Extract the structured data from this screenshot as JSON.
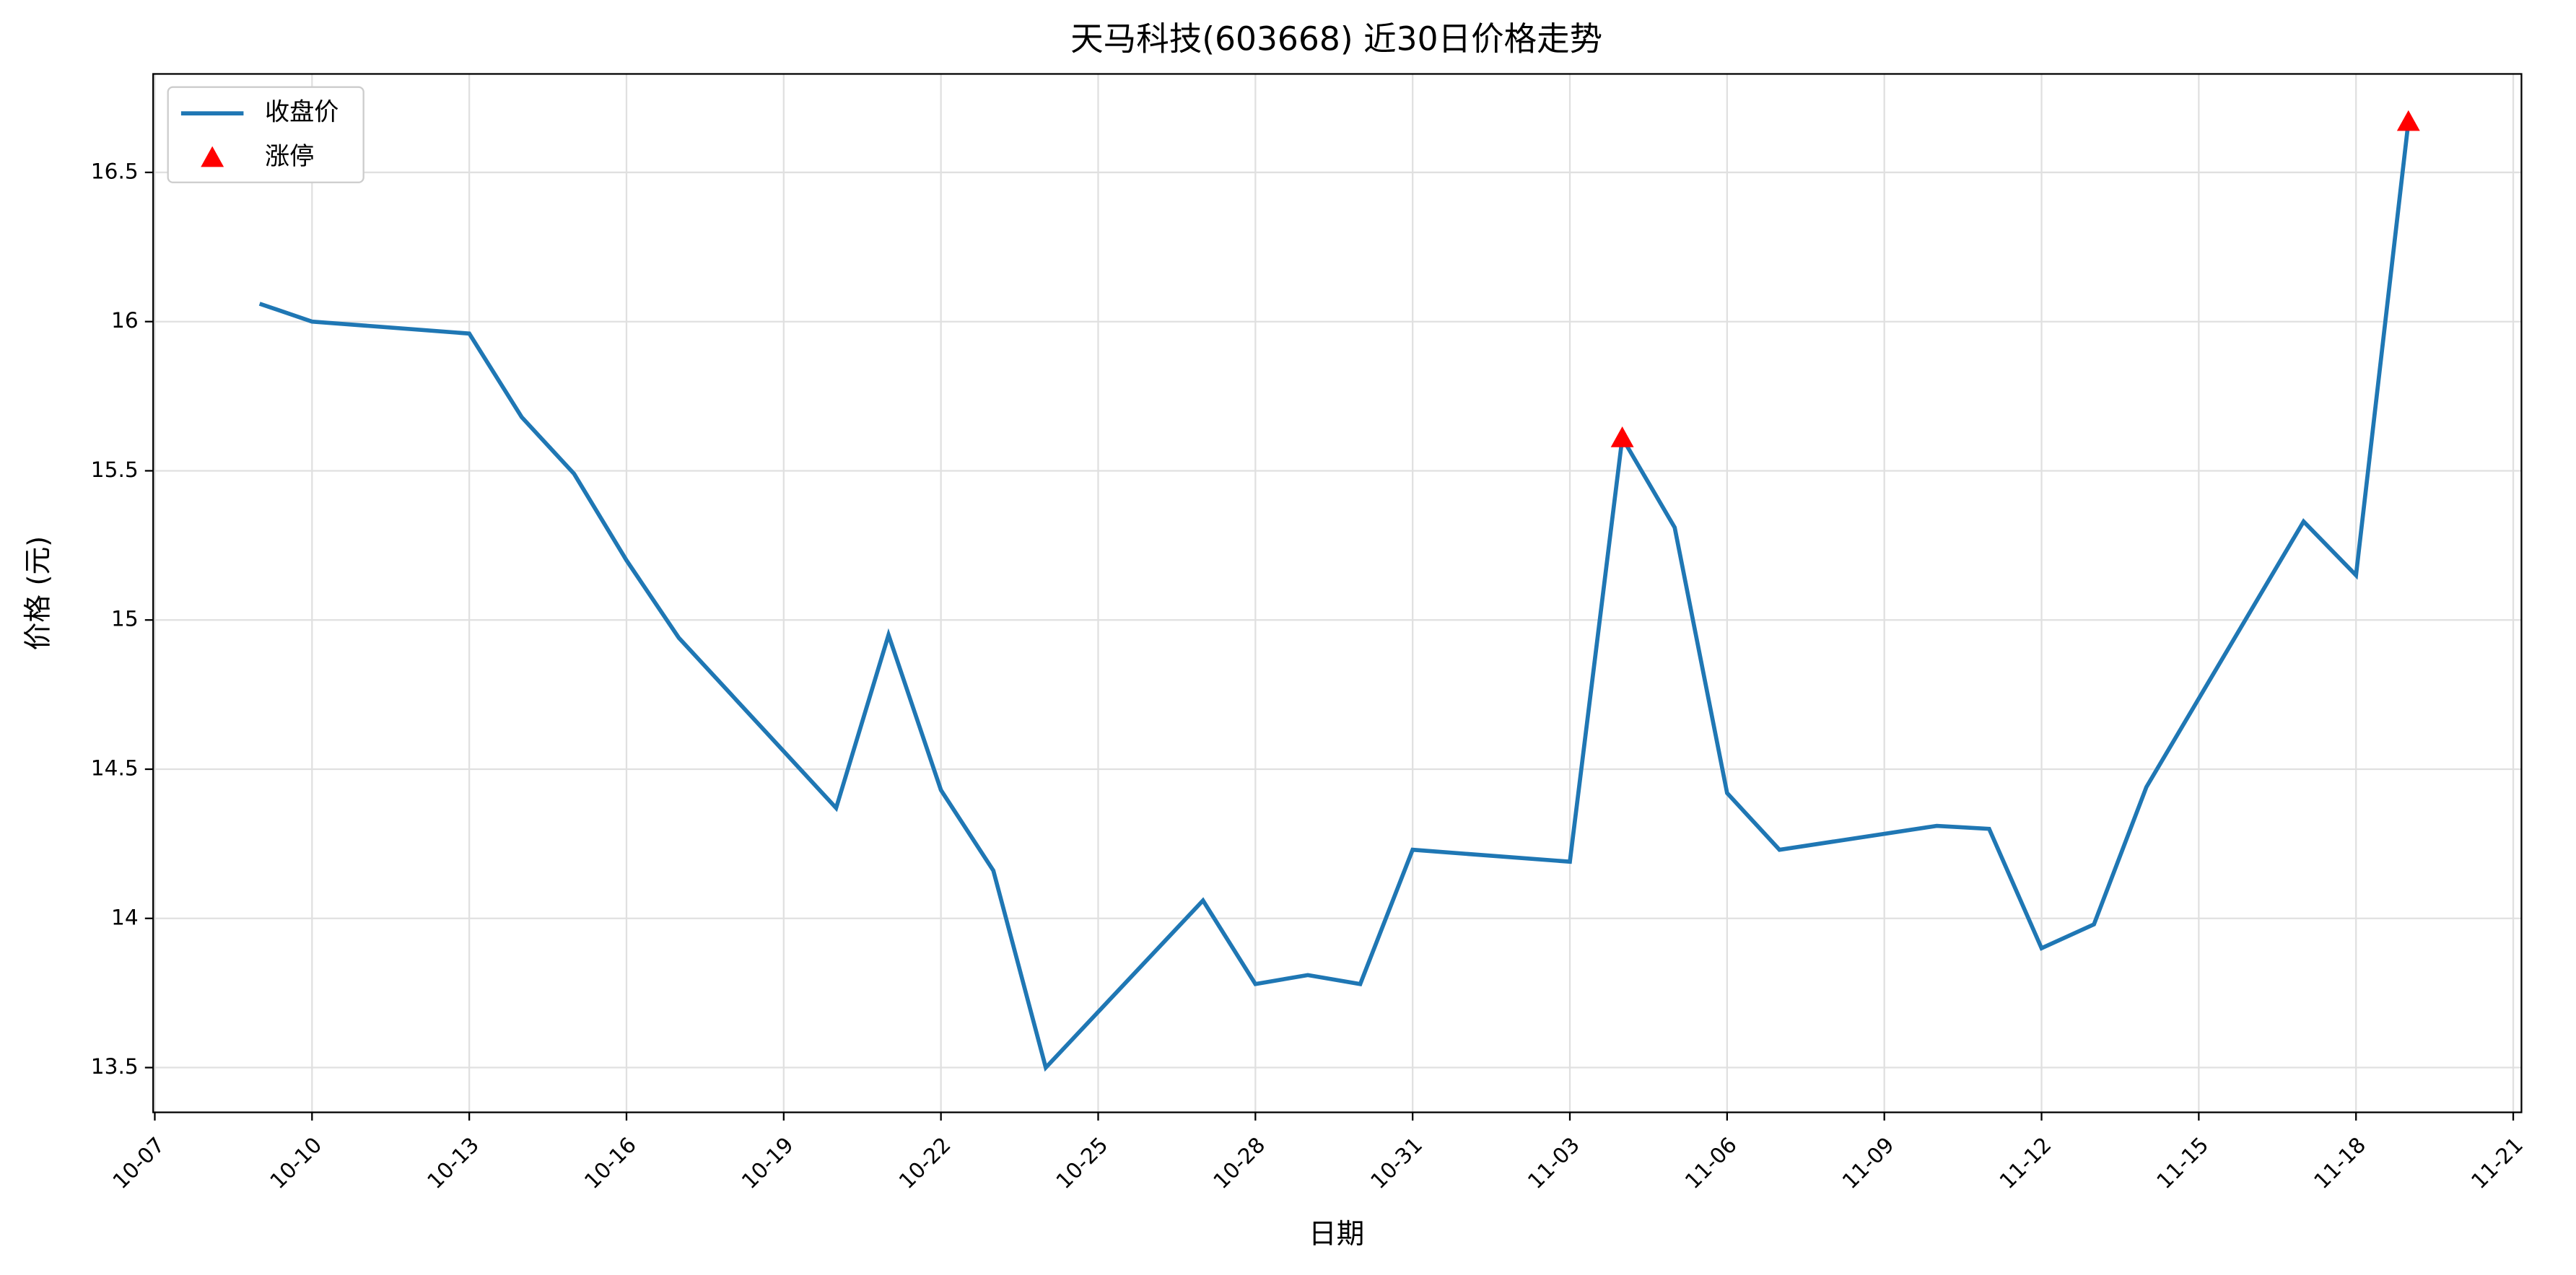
{
  "chart_data": {
    "type": "line",
    "title": "天马科技(603668) 近30日价格走势",
    "x_label": "日期",
    "y_label": "价格 (元)",
    "series": [
      {
        "name": "收盘价",
        "kind": "line",
        "color": "#1f77b4",
        "x": [
          "10-09",
          "10-10",
          "10-13",
          "10-14",
          "10-15",
          "10-16",
          "10-17",
          "10-20",
          "10-21",
          "10-22",
          "10-23",
          "10-24",
          "10-27",
          "10-28",
          "10-29",
          "10-30",
          "10-31",
          "11-03",
          "11-04",
          "11-05",
          "11-06",
          "11-07",
          "11-10",
          "11-11",
          "11-12",
          "11-13",
          "11-14",
          "11-17",
          "11-18",
          "11-19"
        ],
        "values": [
          16.06,
          16.0,
          15.96,
          15.68,
          15.49,
          15.2,
          14.94,
          14.37,
          14.95,
          14.43,
          14.16,
          13.5,
          14.06,
          13.78,
          13.81,
          13.78,
          14.23,
          14.19,
          15.61,
          15.31,
          14.42,
          14.23,
          14.31,
          14.3,
          13.9,
          13.98,
          14.44,
          15.33,
          15.15,
          16.67
        ]
      },
      {
        "name": "涨停",
        "kind": "triangle",
        "color": "#ff0000",
        "x": [
          "11-04",
          "11-19"
        ],
        "values": [
          15.61,
          16.67
        ]
      }
    ],
    "xlim": [
      "10-07",
      "11-21"
    ],
    "xticks": [
      "10-07",
      "10-10",
      "10-13",
      "10-16",
      "10-19",
      "10-22",
      "10-25",
      "10-28",
      "10-31",
      "11-03",
      "11-06",
      "11-09",
      "11-12",
      "11-15",
      "11-18",
      "11-21"
    ],
    "ylim": [
      13.35,
      16.83
    ],
    "yticks": [
      13.5,
      14.0,
      14.5,
      15.0,
      15.5,
      16.0,
      16.5
    ],
    "grid": true,
    "legend": "upper-left"
  }
}
